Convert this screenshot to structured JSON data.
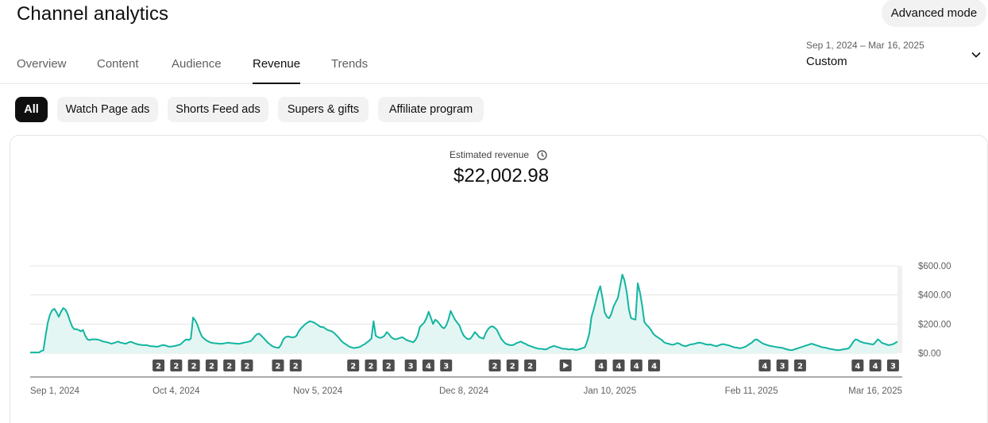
{
  "header": {
    "title": "Channel analytics",
    "advanced_mode_label": "Advanced mode"
  },
  "tabs": [
    {
      "label": "Overview",
      "active": false
    },
    {
      "label": "Content",
      "active": false
    },
    {
      "label": "Audience",
      "active": false
    },
    {
      "label": "Revenue",
      "active": true
    },
    {
      "label": "Trends",
      "active": false
    }
  ],
  "date_picker": {
    "range_label": "Sep 1, 2024 – Mar 16, 2025",
    "preset_label": "Custom",
    "icon": "chevron-down-icon"
  },
  "filter_chips": [
    {
      "label": "All",
      "active": true
    },
    {
      "label": "Watch Page ads",
      "active": false
    },
    {
      "label": "Shorts Feed ads",
      "active": false
    },
    {
      "label": "Supers & gifts",
      "active": false
    },
    {
      "label": "Affiliate program",
      "active": false
    }
  ],
  "metric": {
    "label": "Estimated revenue",
    "icon": "clock-icon",
    "value": "$22,002.98"
  },
  "colors": {
    "line": "#12b5a1",
    "fill": "#e4f6f3",
    "marker_bg": "#4d4d4d",
    "active_chip": "#0f0f0f"
  },
  "chart_data": {
    "type": "area",
    "ylim": [
      0,
      600
    ],
    "y_ticks": [
      "$600.00",
      "$400.00",
      "$200.00",
      "$0.00"
    ],
    "y_tick_values": [
      600,
      400,
      200,
      0
    ],
    "x_tick_labels": [
      "Sep 1, 2024",
      "Oct 4, 2024",
      "Nov 5, 2024",
      "Dec 8, 2024",
      "Jan 10, 2025",
      "Feb 11, 2025",
      "Mar 16, 2025"
    ],
    "x_tick_days": [
      0,
      33,
      65,
      98,
      131,
      163,
      196
    ],
    "series": [
      {
        "values": [
          5,
          5,
          5,
          5,
          5,
          15,
          20,
          120,
          210,
          265,
          295,
          305,
          280,
          250,
          285,
          310,
          300,
          270,
          225,
          185,
          165,
          165,
          160,
          150,
          160,
          120,
          95,
          90,
          95,
          95,
          95,
          92,
          88,
          80,
          78,
          75,
          70,
          65,
          70,
          75,
          80,
          72,
          70,
          65,
          68,
          76,
          78,
          70,
          65,
          60,
          58,
          55,
          55,
          55,
          50,
          48,
          47,
          45,
          45,
          50,
          55,
          55,
          50,
          45,
          45,
          48,
          50,
          55,
          58,
          70,
          85,
          95,
          90,
          100,
          245,
          225,
          195,
          150,
          115,
          100,
          88,
          80,
          73,
          70,
          68,
          67,
          65,
          65,
          67,
          70,
          72,
          70,
          68,
          67,
          65,
          65,
          68,
          72,
          75,
          78,
          82,
          95,
          115,
          130,
          135,
          120,
          105,
          88,
          72,
          60,
          48,
          42,
          38,
          37,
          60,
          95,
          110,
          115,
          112,
          108,
          110,
          120,
          150,
          170,
          185,
          200,
          210,
          220,
          215,
          210,
          200,
          190,
          180,
          180,
          170,
          160,
          155,
          150,
          140,
          125,
          110,
          90,
          75,
          65,
          55,
          45,
          40,
          35,
          38,
          40,
          45,
          55,
          62,
          75,
          85,
          100,
          220,
          120,
          110,
          105,
          110,
          120,
          145,
          130,
          110,
          100,
          95,
          100,
          105,
          110,
          100,
          90,
          85,
          80,
          75,
          90,
          120,
          180,
          195,
          210,
          240,
          285,
          245,
          200,
          230,
          220,
          200,
          180,
          170,
          190,
          230,
          290,
          260,
          230,
          210,
          190,
          150,
          120,
          105,
          95,
          100,
          120,
          145,
          130,
          110,
          105,
          100,
          140,
          165,
          180,
          185,
          175,
          160,
          130,
          100,
          80,
          65,
          60,
          55,
          55,
          60,
          70,
          75,
          80,
          70,
          65,
          55,
          50,
          45,
          38,
          35,
          30,
          30,
          28,
          25,
          30,
          40,
          45,
          50,
          45,
          40,
          35,
          30,
          30,
          28,
          25,
          28,
          25,
          22,
          25,
          30,
          35,
          40,
          80,
          135,
          250,
          300,
          360,
          420,
          460,
          380,
          280,
          250,
          240,
          270,
          320,
          350,
          380,
          460,
          540,
          500,
          420,
          300,
          240,
          235,
          230,
          480,
          420,
          330,
          215,
          195,
          180,
          160,
          135,
          120,
          110,
          100,
          90,
          75,
          68,
          65,
          60,
          58,
          62,
          70,
          65,
          55,
          50,
          48,
          55,
          60,
          62,
          65,
          70,
          72,
          70,
          65,
          60,
          58,
          60,
          55,
          50,
          48,
          55,
          60,
          62,
          58,
          55,
          50,
          45,
          40,
          38,
          35,
          35,
          40,
          45,
          55,
          65,
          75,
          90,
          95,
          85,
          75,
          65,
          60,
          55,
          50,
          48,
          45,
          42,
          40,
          38,
          35,
          30,
          25,
          22,
          20,
          25,
          30,
          35,
          40,
          45,
          50,
          55,
          60,
          65,
          60,
          55,
          50,
          45,
          40,
          38,
          35,
          30,
          28,
          25,
          22,
          20,
          22,
          25,
          28,
          30,
          35,
          55,
          80,
          95,
          90,
          80,
          75,
          70,
          68,
          65,
          62,
          60,
          75,
          95,
          85,
          70,
          65,
          60,
          55,
          58,
          62,
          70,
          80
        ]
      }
    ],
    "markers": [
      {
        "day": 29,
        "label": "2"
      },
      {
        "day": 33,
        "label": "2"
      },
      {
        "day": 37,
        "label": "2"
      },
      {
        "day": 41,
        "label": "2"
      },
      {
        "day": 45,
        "label": "2"
      },
      {
        "day": 49,
        "label": "2"
      },
      {
        "day": 56,
        "label": "2"
      },
      {
        "day": 60,
        "label": "2"
      },
      {
        "day": 73,
        "label": "2"
      },
      {
        "day": 77,
        "label": "2"
      },
      {
        "day": 81,
        "label": "2"
      },
      {
        "day": 86,
        "label": "3"
      },
      {
        "day": 90,
        "label": "4"
      },
      {
        "day": 94,
        "label": "3"
      },
      {
        "day": 105,
        "label": "2"
      },
      {
        "day": 109,
        "label": "2"
      },
      {
        "day": 113,
        "label": "2"
      },
      {
        "day": 121,
        "label": "play"
      },
      {
        "day": 129,
        "label": "4"
      },
      {
        "day": 133,
        "label": "4"
      },
      {
        "day": 137,
        "label": "4"
      },
      {
        "day": 141,
        "label": "4"
      },
      {
        "day": 166,
        "label": "4"
      },
      {
        "day": 170,
        "label": "3"
      },
      {
        "day": 174,
        "label": "2"
      },
      {
        "day": 187,
        "label": "4"
      },
      {
        "day": 191,
        "label": "4"
      },
      {
        "day": 195,
        "label": "3"
      }
    ]
  }
}
